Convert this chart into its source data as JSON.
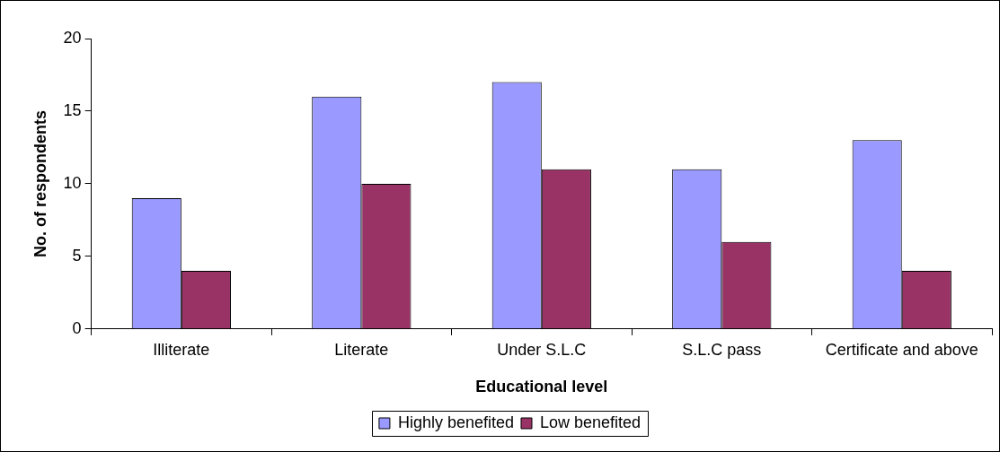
{
  "chart_data": {
    "type": "bar",
    "xlabel": "Educational level",
    "ylabel": "No. of respondents",
    "categories": [
      "Illiterate",
      "Literate",
      "Under S.L.C",
      "S.L.C pass",
      "Certificate and above"
    ],
    "series": [
      {
        "name": "Highly benefited",
        "color": "#9999ff",
        "values": [
          9,
          16,
          17,
          11,
          13
        ]
      },
      {
        "name": "Low benefited",
        "color": "#993366",
        "values": [
          4,
          10,
          11,
          6,
          4
        ]
      }
    ],
    "ylim": [
      0,
      20
    ],
    "yticks": [
      0,
      5,
      10,
      15,
      20
    ],
    "grid": false,
    "legend": "bottom"
  }
}
